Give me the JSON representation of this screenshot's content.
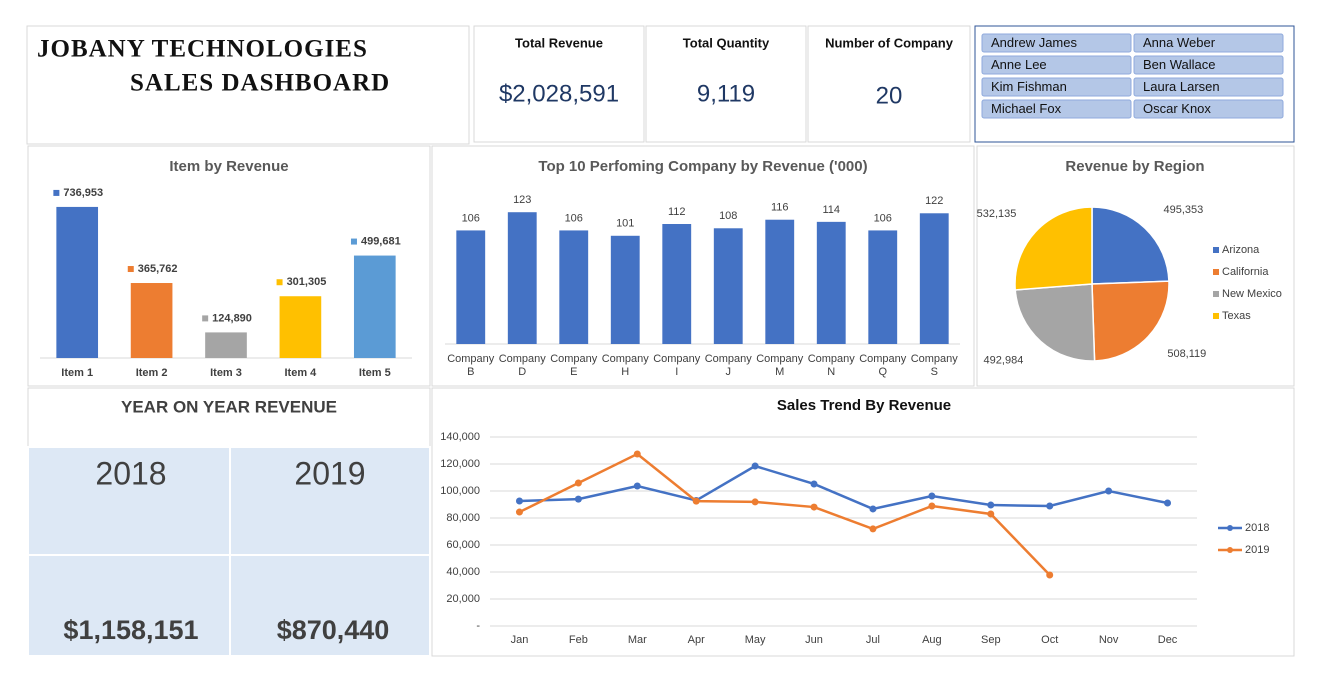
{
  "header": {
    "title_line1": "JOBANY TECHNOLOGIES",
    "title_line2": "SALES DASHBOARD"
  },
  "kpis": [
    {
      "label": "Total Revenue",
      "value": "$2,028,591"
    },
    {
      "label": "Total Quantity",
      "value": "9,119"
    },
    {
      "label": "Number of Company",
      "value": "20"
    }
  ],
  "slicer": {
    "items": [
      "Andrew James",
      "Anna Weber",
      "Anne Lee",
      "Ben Wallace",
      "Kim Fishman",
      "Laura Larsen",
      "Michael Fox",
      "Oscar Knox"
    ]
  },
  "yoy": {
    "title": "YEAR ON YEAR REVENUE",
    "years": [
      "2018",
      "2019"
    ],
    "values": [
      "$1,158,151",
      "$870,440"
    ]
  },
  "chart_data": [
    {
      "type": "bar",
      "title": "Item by Revenue",
      "categories": [
        "Item 1",
        "Item 2",
        "Item 3",
        "Item 4",
        "Item 5"
      ],
      "values": [
        736953,
        365762,
        124890,
        301305,
        499681
      ],
      "value_labels": [
        "736,953",
        "365,762",
        "124,890",
        "301,305",
        "499,681"
      ],
      "colors": [
        "#4472c4",
        "#ed7d31",
        "#a5a5a5",
        "#ffc000",
        "#5b9bd5"
      ],
      "ylim": [
        0,
        800000
      ]
    },
    {
      "type": "bar",
      "title": "Top 10 Perfoming Company by Revenue ('000)",
      "categories": [
        "Company B",
        "Company D",
        "Company E",
        "Company H",
        "Company I",
        "Company J",
        "Company M",
        "Company N",
        "Company Q",
        "Company S"
      ],
      "values": [
        106,
        123,
        106,
        101,
        112,
        108,
        116,
        114,
        106,
        122
      ],
      "color": "#4472c4",
      "ylim": [
        0,
        140
      ]
    },
    {
      "type": "pie",
      "title": "Revenue by Region",
      "categories": [
        "Arizona",
        "California",
        "New Mexico",
        "Texas"
      ],
      "values": [
        495353,
        508119,
        492984,
        532135
      ],
      "value_labels": [
        "495,353",
        "508,119",
        "492,984",
        "532,135"
      ],
      "colors": [
        "#4472c4",
        "#ed7d31",
        "#a5a5a5",
        "#ffc000"
      ],
      "legend": "right"
    },
    {
      "type": "line",
      "title": "Sales Trend By Revenue",
      "categories": [
        "Jan",
        "Feb",
        "Mar",
        "Apr",
        "May",
        "Jun",
        "Jul",
        "Aug",
        "Sep",
        "Oct",
        "Nov",
        "Dec"
      ],
      "series": [
        {
          "name": "2018",
          "color": "#4472c4",
          "values": [
            92600,
            94000,
            103700,
            93000,
            118500,
            105200,
            86700,
            96300,
            89600,
            88900,
            100000,
            91100
          ]
        },
        {
          "name": "2019",
          "color": "#ed7d31",
          "values": [
            84400,
            105900,
            127400,
            92500,
            91900,
            88100,
            71900,
            88900,
            83000,
            37800,
            null,
            null
          ]
        }
      ],
      "ylim": [
        0,
        140000
      ],
      "yticks": [
        {
          "value": 0,
          "label": "-"
        },
        {
          "value": 20000,
          "label": "20,000"
        },
        {
          "value": 40000,
          "label": "40,000"
        },
        {
          "value": 60000,
          "label": "60,000"
        },
        {
          "value": 80000,
          "label": "80,000"
        },
        {
          "value": 100000,
          "label": "100,000"
        },
        {
          "value": 120000,
          "label": "120,000"
        },
        {
          "value": 140000,
          "label": "140,000"
        }
      ],
      "grid": true,
      "legend": "right"
    }
  ]
}
